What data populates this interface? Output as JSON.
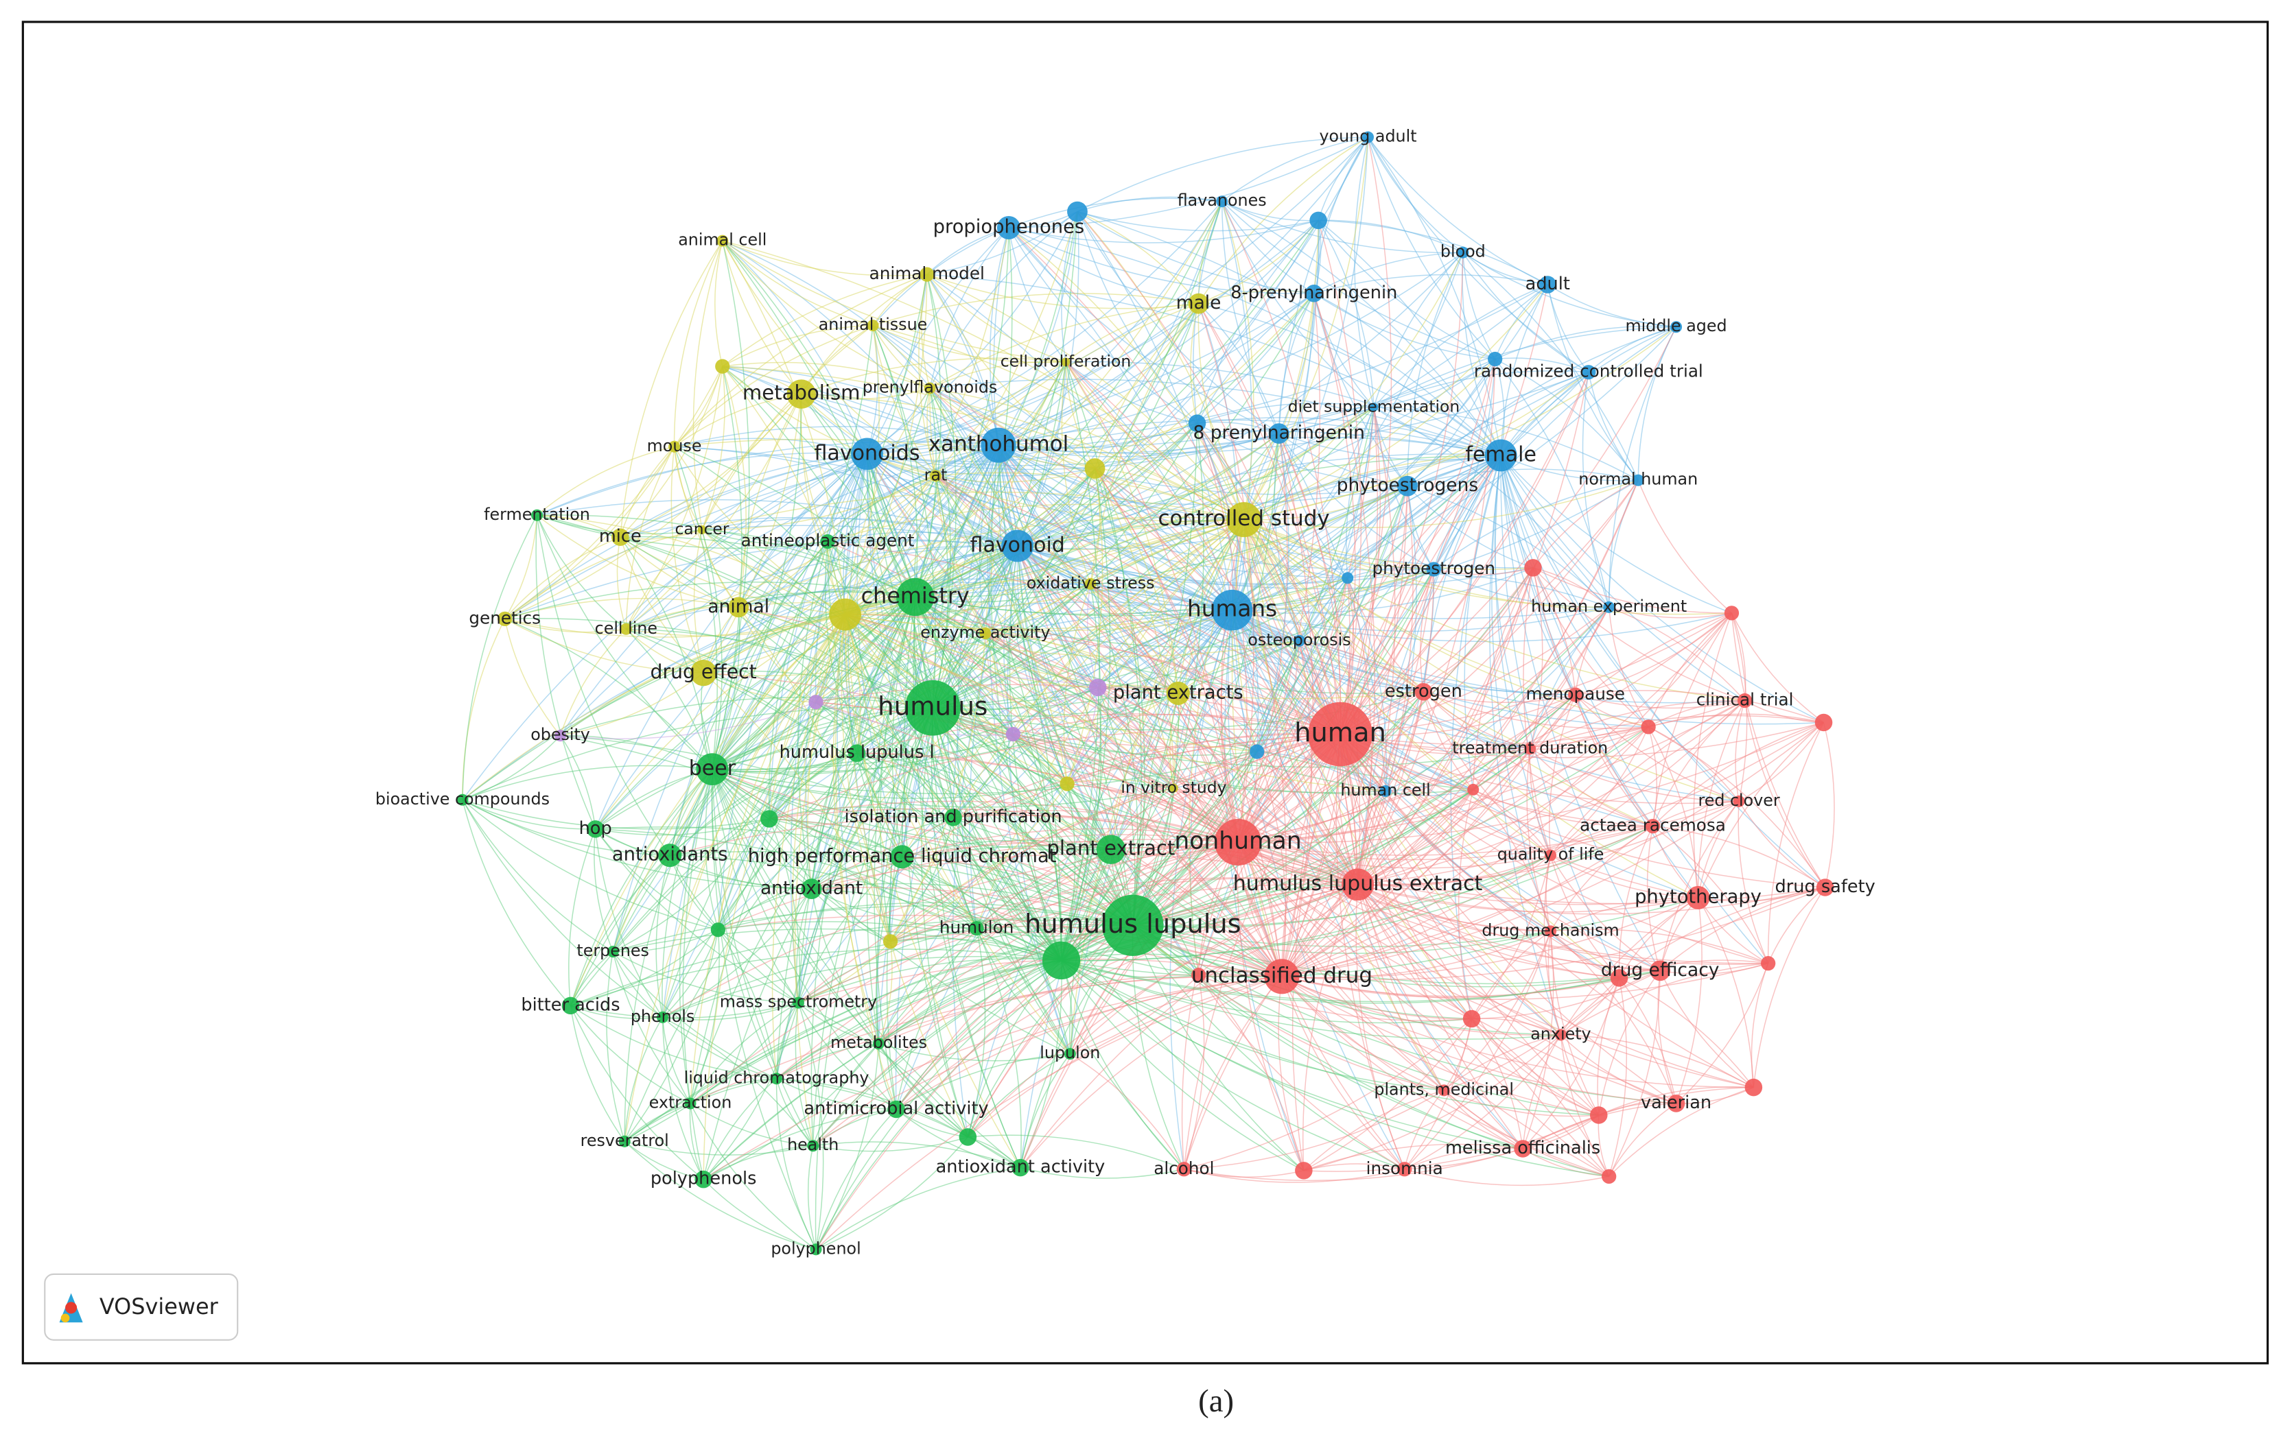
{
  "nodes": [
    {
      "label": "young adult"
    },
    {
      "label": "flavanones"
    },
    {
      "label": "propiophenones"
    },
    {
      "label": "blood"
    },
    {
      "label": "adult"
    },
    {
      "label": "middle aged"
    },
    {
      "label": "8-prenylnaringenin"
    },
    {
      "label": "randomized controlled trial"
    },
    {
      "label": "diet supplementation"
    },
    {
      "label": "8 prenylnaringenin"
    },
    {
      "label": "female"
    },
    {
      "label": "phytoestrogens"
    },
    {
      "label": "normal human"
    },
    {
      "label": "xanthohumol"
    },
    {
      "label": "flavonoids"
    },
    {
      "label": "flavonoid"
    },
    {
      "label": "humans"
    },
    {
      "label": "phytoestrogen"
    },
    {
      "label": "osteoporosis"
    },
    {
      "label": "human cell"
    },
    {
      "label": "human experiment"
    },
    {
      "label": "animal cell"
    },
    {
      "label": "animal model"
    },
    {
      "label": "male"
    },
    {
      "label": "animal tissue"
    },
    {
      "label": "cell proliferation"
    },
    {
      "label": "metabolism"
    },
    {
      "label": "prenylflavonoids"
    },
    {
      "label": "mouse"
    },
    {
      "label": "rat"
    },
    {
      "label": "controlled study"
    },
    {
      "label": "mice"
    },
    {
      "label": "cancer"
    },
    {
      "label": "animal"
    },
    {
      "label": "genetics"
    },
    {
      "label": "cell line"
    },
    {
      "label": "drug effect"
    },
    {
      "label": "plant extracts"
    },
    {
      "label": "in vitro study"
    },
    {
      "label": "enzyme activity"
    },
    {
      "label": "oxidative stress"
    },
    {
      "label": "fermentation"
    },
    {
      "label": "antineoplastic agent"
    },
    {
      "label": "chemistry"
    },
    {
      "label": "humulus"
    },
    {
      "label": "beer"
    },
    {
      "label": "humulus lupulus l"
    },
    {
      "label": "bioactive compounds"
    },
    {
      "label": "isolation and purification"
    },
    {
      "label": "hop"
    },
    {
      "label": "antioxidants"
    },
    {
      "label": "high performance liquid chromat"
    },
    {
      "label": "plant extract"
    },
    {
      "label": "antioxidant"
    },
    {
      "label": "humulon"
    },
    {
      "label": "humulus lupulus"
    },
    {
      "label": "terpenes"
    },
    {
      "label": "bitter acids"
    },
    {
      "label": "phenols"
    },
    {
      "label": "mass spectrometry"
    },
    {
      "label": "metabolites"
    },
    {
      "label": "lupulon"
    },
    {
      "label": "liquid chromatography"
    },
    {
      "label": "extraction"
    },
    {
      "label": "antimicrobial activity"
    },
    {
      "label": "resveratrol"
    },
    {
      "label": "health"
    },
    {
      "label": "antioxidant activity"
    },
    {
      "label": "polyphenols"
    },
    {
      "label": "polyphenol"
    },
    {
      "label": "obesity"
    },
    {
      "label": "human"
    },
    {
      "label": "estrogen"
    },
    {
      "label": "menopause"
    },
    {
      "label": "clinical trial"
    },
    {
      "label": "treatment duration"
    },
    {
      "label": "red clover"
    },
    {
      "label": "actaea racemosa"
    },
    {
      "label": "nonhuman"
    },
    {
      "label": "quality of life"
    },
    {
      "label": "humulus lupulus extract"
    },
    {
      "label": "phytotherapy"
    },
    {
      "label": "drug safety"
    },
    {
      "label": "drug mechanism"
    },
    {
      "label": "unclassified drug"
    },
    {
      "label": "drug efficacy"
    },
    {
      "label": "anxiety"
    },
    {
      "label": "plants, medicinal"
    },
    {
      "label": "valerian"
    },
    {
      "label": "melissa officinalis"
    },
    {
      "label": "alcohol"
    },
    {
      "label": "insomnia"
    }
  ],
  "logo": {
    "text": "VOSviewer"
  },
  "caption": "(a)"
}
